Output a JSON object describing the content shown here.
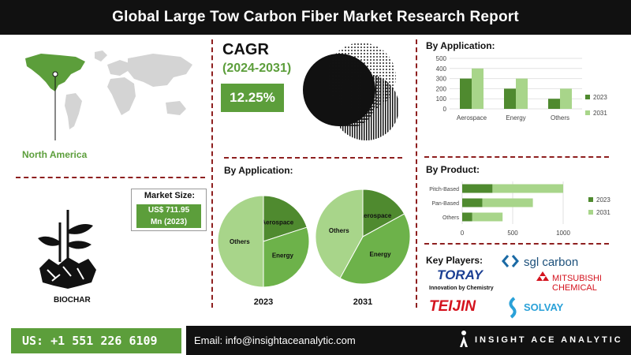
{
  "title": "Global Large Tow Carbon Fiber Market Research Report",
  "cagr": {
    "label": "CAGR",
    "period": "(2024-2031)",
    "value": "12.25%"
  },
  "region": {
    "highlighted": "North America"
  },
  "market_size": {
    "title": "Market Size:",
    "value_line1": "US$ 711.95",
    "value_line2": "Mn (2023)"
  },
  "biochar_label": "BIOCHAR",
  "colors": {
    "dark_green": "#4f8a2f",
    "mid_green": "#6db24a",
    "light_green": "#a8d58a",
    "accent": "#5c9e3b",
    "divider": "#8e1f1f"
  },
  "pies": {
    "title": "By Application:",
    "labels": {
      "aerospace": "Aerospace",
      "energy": "Energy",
      "others": "Others"
    },
    "year_2023": "2023",
    "year_2031": "2031"
  },
  "key_players": {
    "title": "Key Players:",
    "companies": [
      "TORAY",
      "Innovation by Chemistry",
      "sgl carbon",
      "MITSUBISHI",
      "CHEMICAL",
      "TEIJIN",
      "SOLVAY"
    ]
  },
  "footer": {
    "phone": "US: +1 551 226 6109",
    "email": "Email: info@insightaceanalytic.com",
    "brand": "INSIGHT ACE ANALYTIC"
  },
  "chart_data": [
    {
      "type": "bar",
      "title": "By Application:",
      "categories": [
        "Aerospace",
        "Energy",
        "Others"
      ],
      "series": [
        {
          "name": "2023",
          "values": [
            300,
            200,
            100
          ]
        },
        {
          "name": "2031",
          "values": [
            400,
            300,
            200
          ]
        }
      ],
      "ylim": [
        0,
        500
      ],
      "yticks": [
        "0",
        "100",
        "200",
        "300",
        "400",
        "500"
      ],
      "grid": true,
      "legend": "right"
    },
    {
      "type": "bar",
      "orientation": "horizontal",
      "title": "By Product:",
      "categories": [
        "Pitch-Based",
        "Pan-Based",
        "Others"
      ],
      "series": [
        {
          "name": "2023",
          "values": [
            300,
            200,
            100
          ]
        },
        {
          "name": "2031",
          "values": [
            700,
            500,
            300
          ]
        }
      ],
      "stacked": true,
      "xlim": [
        0,
        1000
      ],
      "xticks": [
        "0",
        "500",
        "1000"
      ],
      "grid": true,
      "legend": "right"
    },
    {
      "type": "pie",
      "name": "2023",
      "labels": [
        "Aerospace",
        "Energy",
        "Others"
      ],
      "values": [
        20,
        30,
        50
      ]
    },
    {
      "type": "pie",
      "name": "2031",
      "labels": [
        "Aerospace",
        "Energy",
        "Others"
      ],
      "values": [
        17,
        41,
        42
      ]
    }
  ]
}
